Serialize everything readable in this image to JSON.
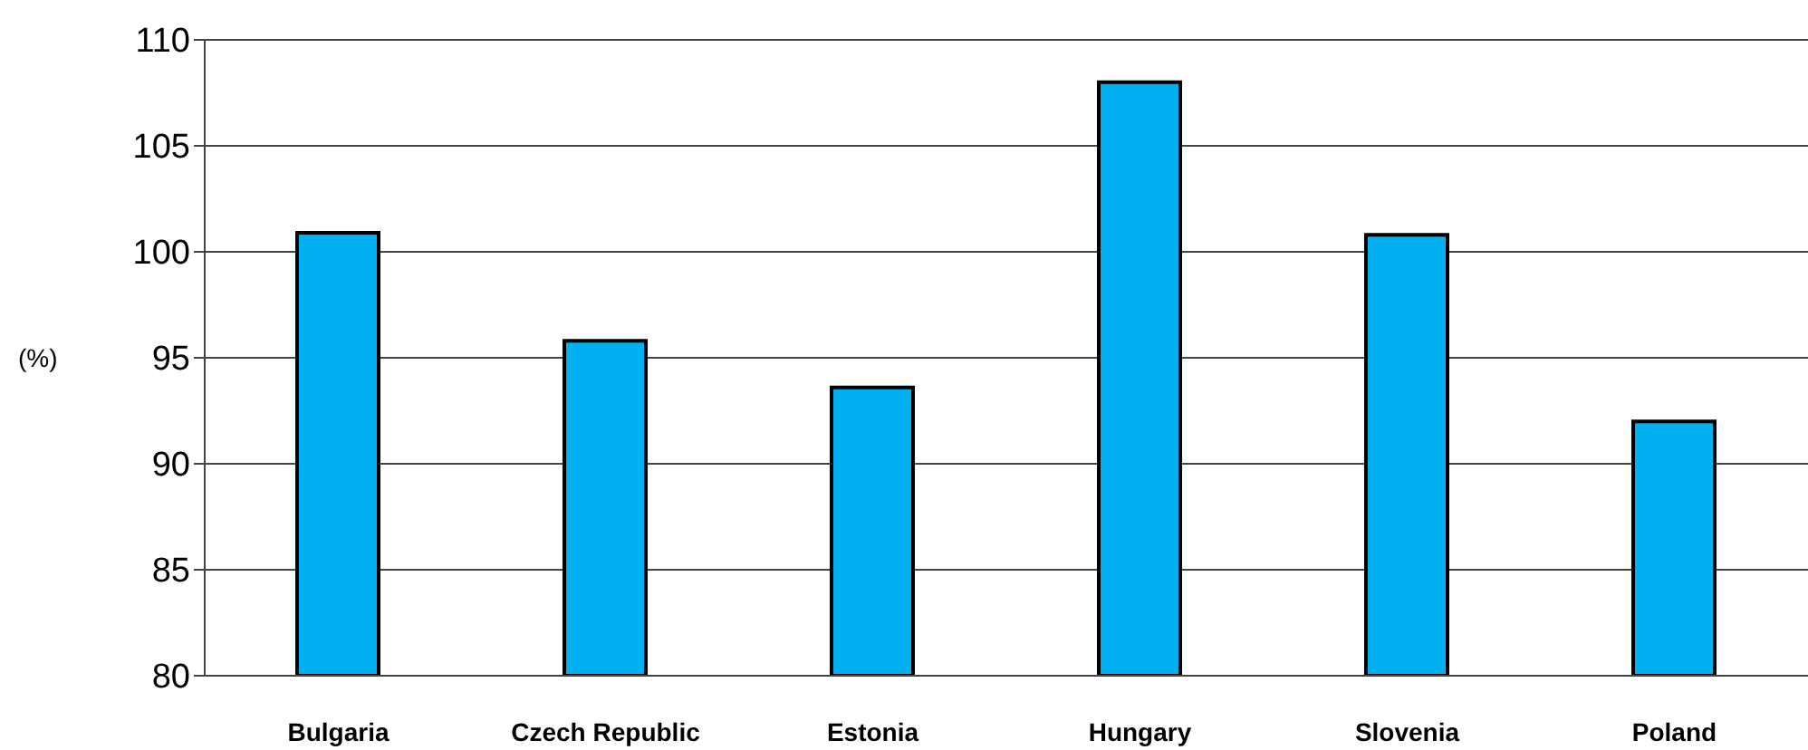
{
  "chart_data": {
    "type": "bar",
    "ylabel": "(%)",
    "categories": [
      "Bulgaria",
      "Czech Republic",
      "Estonia",
      "Hungary",
      "Slovenia",
      "Poland"
    ],
    "values": [
      100.9,
      95.8,
      93.6,
      108,
      100.8,
      92.0
    ],
    "color": "#00b0f0",
    "ylim": [
      80,
      110
    ],
    "yticks": [
      80,
      85,
      90,
      95,
      100,
      105,
      110
    ],
    "grid": "y"
  }
}
